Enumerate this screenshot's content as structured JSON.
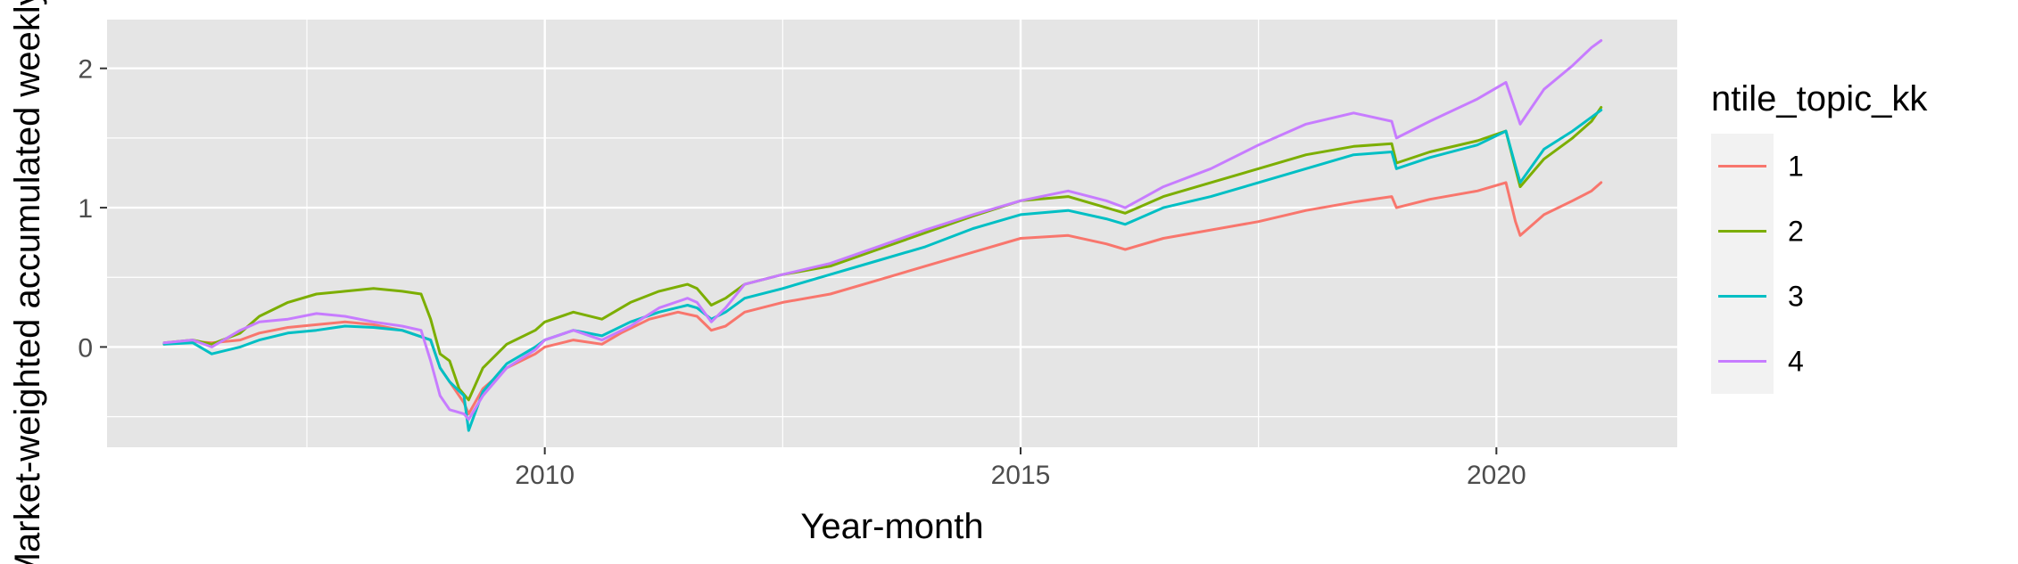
{
  "chart_data": {
    "type": "line",
    "xlabel": "Year-month",
    "ylabel": "Market-weighted accumulated weekly return",
    "xlim": [
      2005.4,
      2021.9
    ],
    "ylim": [
      -0.72,
      2.35
    ],
    "x_ticks": [
      2010,
      2015,
      2020
    ],
    "x_tick_labels": [
      "2010",
      "2015",
      "2020"
    ],
    "x_minor_ticks": [
      2007.5,
      2012.5,
      2017.5
    ],
    "y_ticks": [
      0,
      1,
      2
    ],
    "y_tick_labels": [
      "0",
      "1",
      "2"
    ],
    "y_minor_ticks": [
      -0.5,
      0.5,
      1.5
    ],
    "grid": true,
    "legend": {
      "title": "ntile_topic_kk",
      "position": "right"
    },
    "series": [
      {
        "name": "1",
        "color": "#F8766D",
        "points": [
          [
            2006.0,
            0.02
          ],
          [
            2006.3,
            0.04
          ],
          [
            2006.5,
            0.03
          ],
          [
            2006.8,
            0.05
          ],
          [
            2007.0,
            0.1
          ],
          [
            2007.3,
            0.14
          ],
          [
            2007.6,
            0.16
          ],
          [
            2007.9,
            0.18
          ],
          [
            2008.2,
            0.16
          ],
          [
            2008.5,
            0.12
          ],
          [
            2008.8,
            0.05
          ],
          [
            2008.9,
            -0.15
          ],
          [
            2009.0,
            -0.25
          ],
          [
            2009.15,
            -0.4
          ],
          [
            2009.2,
            -0.48
          ],
          [
            2009.35,
            -0.3
          ],
          [
            2009.6,
            -0.15
          ],
          [
            2009.9,
            -0.05
          ],
          [
            2010.0,
            0.0
          ],
          [
            2010.3,
            0.05
          ],
          [
            2010.6,
            0.02
          ],
          [
            2010.8,
            0.1
          ],
          [
            2011.1,
            0.2
          ],
          [
            2011.4,
            0.25
          ],
          [
            2011.6,
            0.22
          ],
          [
            2011.75,
            0.12
          ],
          [
            2011.9,
            0.15
          ],
          [
            2012.1,
            0.25
          ],
          [
            2012.5,
            0.32
          ],
          [
            2013.0,
            0.38
          ],
          [
            2013.5,
            0.48
          ],
          [
            2014.0,
            0.58
          ],
          [
            2014.5,
            0.68
          ],
          [
            2015.0,
            0.78
          ],
          [
            2015.5,
            0.8
          ],
          [
            2015.9,
            0.74
          ],
          [
            2016.1,
            0.7
          ],
          [
            2016.5,
            0.78
          ],
          [
            2017.0,
            0.84
          ],
          [
            2017.5,
            0.9
          ],
          [
            2018.0,
            0.98
          ],
          [
            2018.5,
            1.04
          ],
          [
            2018.9,
            1.08
          ],
          [
            2018.95,
            1.0
          ],
          [
            2019.3,
            1.06
          ],
          [
            2019.8,
            1.12
          ],
          [
            2020.1,
            1.18
          ],
          [
            2020.2,
            0.9
          ],
          [
            2020.25,
            0.8
          ],
          [
            2020.5,
            0.95
          ],
          [
            2020.8,
            1.05
          ],
          [
            2021.0,
            1.12
          ],
          [
            2021.1,
            1.18
          ]
        ]
      },
      {
        "name": "2",
        "color": "#7CAE00",
        "points": [
          [
            2006.0,
            0.03
          ],
          [
            2006.3,
            0.05
          ],
          [
            2006.5,
            0.02
          ],
          [
            2006.8,
            0.1
          ],
          [
            2007.0,
            0.22
          ],
          [
            2007.3,
            0.32
          ],
          [
            2007.6,
            0.38
          ],
          [
            2007.9,
            0.4
          ],
          [
            2008.2,
            0.42
          ],
          [
            2008.5,
            0.4
          ],
          [
            2008.7,
            0.38
          ],
          [
            2008.8,
            0.2
          ],
          [
            2008.9,
            -0.05
          ],
          [
            2009.0,
            -0.1
          ],
          [
            2009.1,
            -0.3
          ],
          [
            2009.2,
            -0.38
          ],
          [
            2009.35,
            -0.15
          ],
          [
            2009.6,
            0.02
          ],
          [
            2009.9,
            0.12
          ],
          [
            2010.0,
            0.18
          ],
          [
            2010.3,
            0.25
          ],
          [
            2010.6,
            0.2
          ],
          [
            2010.9,
            0.32
          ],
          [
            2011.2,
            0.4
          ],
          [
            2011.5,
            0.45
          ],
          [
            2011.6,
            0.42
          ],
          [
            2011.75,
            0.3
          ],
          [
            2011.9,
            0.35
          ],
          [
            2012.1,
            0.45
          ],
          [
            2012.5,
            0.52
          ],
          [
            2013.0,
            0.58
          ],
          [
            2013.5,
            0.7
          ],
          [
            2014.0,
            0.82
          ],
          [
            2014.5,
            0.94
          ],
          [
            2015.0,
            1.05
          ],
          [
            2015.5,
            1.08
          ],
          [
            2015.9,
            1.0
          ],
          [
            2016.1,
            0.96
          ],
          [
            2016.5,
            1.08
          ],
          [
            2017.0,
            1.18
          ],
          [
            2017.5,
            1.28
          ],
          [
            2018.0,
            1.38
          ],
          [
            2018.5,
            1.44
          ],
          [
            2018.9,
            1.46
          ],
          [
            2018.95,
            1.32
          ],
          [
            2019.3,
            1.4
          ],
          [
            2019.8,
            1.48
          ],
          [
            2020.1,
            1.55
          ],
          [
            2020.2,
            1.28
          ],
          [
            2020.25,
            1.15
          ],
          [
            2020.5,
            1.35
          ],
          [
            2020.8,
            1.5
          ],
          [
            2021.0,
            1.62
          ],
          [
            2021.1,
            1.72
          ]
        ]
      },
      {
        "name": "3",
        "color": "#00BFC4",
        "points": [
          [
            2006.0,
            0.02
          ],
          [
            2006.3,
            0.03
          ],
          [
            2006.5,
            -0.05
          ],
          [
            2006.8,
            0.0
          ],
          [
            2007.0,
            0.05
          ],
          [
            2007.3,
            0.1
          ],
          [
            2007.6,
            0.12
          ],
          [
            2007.9,
            0.15
          ],
          [
            2008.2,
            0.14
          ],
          [
            2008.5,
            0.12
          ],
          [
            2008.8,
            0.05
          ],
          [
            2008.9,
            -0.15
          ],
          [
            2009.0,
            -0.25
          ],
          [
            2009.15,
            -0.35
          ],
          [
            2009.2,
            -0.6
          ],
          [
            2009.35,
            -0.32
          ],
          [
            2009.6,
            -0.12
          ],
          [
            2009.9,
            0.0
          ],
          [
            2010.0,
            0.05
          ],
          [
            2010.3,
            0.12
          ],
          [
            2010.6,
            0.08
          ],
          [
            2010.9,
            0.18
          ],
          [
            2011.2,
            0.25
          ],
          [
            2011.5,
            0.3
          ],
          [
            2011.6,
            0.28
          ],
          [
            2011.75,
            0.2
          ],
          [
            2011.9,
            0.25
          ],
          [
            2012.1,
            0.35
          ],
          [
            2012.5,
            0.42
          ],
          [
            2013.0,
            0.52
          ],
          [
            2013.5,
            0.62
          ],
          [
            2014.0,
            0.72
          ],
          [
            2014.5,
            0.85
          ],
          [
            2015.0,
            0.95
          ],
          [
            2015.5,
            0.98
          ],
          [
            2015.9,
            0.92
          ],
          [
            2016.1,
            0.88
          ],
          [
            2016.5,
            1.0
          ],
          [
            2017.0,
            1.08
          ],
          [
            2017.5,
            1.18
          ],
          [
            2018.0,
            1.28
          ],
          [
            2018.5,
            1.38
          ],
          [
            2018.9,
            1.4
          ],
          [
            2018.95,
            1.28
          ],
          [
            2019.3,
            1.36
          ],
          [
            2019.8,
            1.45
          ],
          [
            2020.1,
            1.55
          ],
          [
            2020.2,
            1.3
          ],
          [
            2020.25,
            1.18
          ],
          [
            2020.5,
            1.42
          ],
          [
            2020.8,
            1.55
          ],
          [
            2021.0,
            1.65
          ],
          [
            2021.1,
            1.7
          ]
        ]
      },
      {
        "name": "4",
        "color": "#C77CFF",
        "points": [
          [
            2006.0,
            0.03
          ],
          [
            2006.3,
            0.05
          ],
          [
            2006.5,
            0.0
          ],
          [
            2006.8,
            0.12
          ],
          [
            2007.0,
            0.18
          ],
          [
            2007.3,
            0.2
          ],
          [
            2007.6,
            0.24
          ],
          [
            2007.9,
            0.22
          ],
          [
            2008.2,
            0.18
          ],
          [
            2008.5,
            0.15
          ],
          [
            2008.7,
            0.12
          ],
          [
            2008.8,
            -0.1
          ],
          [
            2008.9,
            -0.35
          ],
          [
            2009.0,
            -0.45
          ],
          [
            2009.15,
            -0.48
          ],
          [
            2009.2,
            -0.52
          ],
          [
            2009.35,
            -0.35
          ],
          [
            2009.6,
            -0.15
          ],
          [
            2009.9,
            -0.02
          ],
          [
            2010.0,
            0.05
          ],
          [
            2010.3,
            0.12
          ],
          [
            2010.6,
            0.05
          ],
          [
            2010.9,
            0.15
          ],
          [
            2011.2,
            0.28
          ],
          [
            2011.5,
            0.35
          ],
          [
            2011.6,
            0.32
          ],
          [
            2011.75,
            0.18
          ],
          [
            2011.9,
            0.28
          ],
          [
            2012.1,
            0.45
          ],
          [
            2012.5,
            0.52
          ],
          [
            2013.0,
            0.6
          ],
          [
            2013.5,
            0.72
          ],
          [
            2014.0,
            0.84
          ],
          [
            2014.5,
            0.95
          ],
          [
            2015.0,
            1.05
          ],
          [
            2015.5,
            1.12
          ],
          [
            2015.9,
            1.05
          ],
          [
            2016.1,
            1.0
          ],
          [
            2016.5,
            1.15
          ],
          [
            2017.0,
            1.28
          ],
          [
            2017.5,
            1.45
          ],
          [
            2018.0,
            1.6
          ],
          [
            2018.5,
            1.68
          ],
          [
            2018.9,
            1.62
          ],
          [
            2018.95,
            1.5
          ],
          [
            2019.3,
            1.62
          ],
          [
            2019.8,
            1.78
          ],
          [
            2020.1,
            1.9
          ],
          [
            2020.2,
            1.7
          ],
          [
            2020.25,
            1.6
          ],
          [
            2020.5,
            1.85
          ],
          [
            2020.8,
            2.02
          ],
          [
            2021.0,
            2.15
          ],
          [
            2021.1,
            2.2
          ]
        ]
      }
    ]
  }
}
